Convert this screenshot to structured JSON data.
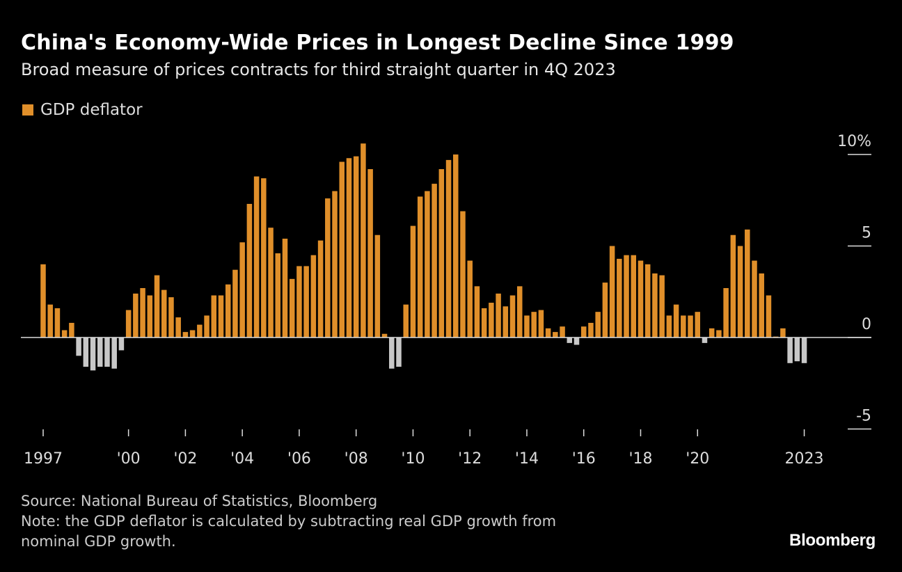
{
  "chart_data": {
    "type": "bar",
    "title": "China's Economy-Wide Prices in Longest Decline Since 1999",
    "subtitle": "Broad measure of prices contracts for third straight quarter in 4Q 2023",
    "series": [
      {
        "name": "GDP deflator",
        "start": "1997 Q1",
        "frequency": "quarterly",
        "values": [
          4.0,
          1.8,
          1.6,
          0.4,
          0.8,
          -1.0,
          -1.6,
          -1.8,
          -1.6,
          -1.6,
          -1.7,
          -0.7,
          1.5,
          2.4,
          2.7,
          2.3,
          3.4,
          2.6,
          2.2,
          1.1,
          0.3,
          0.4,
          0.7,
          1.2,
          2.3,
          2.3,
          2.9,
          3.7,
          5.2,
          7.3,
          8.8,
          8.7,
          6.0,
          4.6,
          5.4,
          3.2,
          3.9,
          3.9,
          4.5,
          5.3,
          7.6,
          8.0,
          9.6,
          9.8,
          9.9,
          10.6,
          9.2,
          5.6,
          0.2,
          -1.7,
          -1.6,
          1.8,
          6.1,
          7.7,
          8.0,
          8.4,
          9.2,
          9.7,
          10.0,
          6.9,
          4.2,
          2.8,
          1.6,
          1.9,
          2.4,
          1.7,
          2.3,
          2.8,
          1.2,
          1.4,
          1.5,
          0.5,
          0.3,
          0.6,
          -0.3,
          -0.4,
          0.6,
          0.8,
          1.4,
          3.0,
          5.0,
          4.3,
          4.5,
          4.5,
          4.2,
          4.0,
          3.5,
          3.4,
          1.2,
          1.8,
          1.2,
          1.2,
          1.4,
          -0.3,
          0.5,
          0.4,
          2.7,
          5.6,
          5.0,
          5.9,
          4.2,
          3.5,
          2.3,
          0.05,
          0.5,
          -1.4,
          -1.3,
          -1.4
        ]
      }
    ],
    "x_tick_labels": [
      "1997",
      "'00",
      "'02",
      "'04",
      "'06",
      "'08",
      "'10",
      "'12",
      "'14",
      "'16",
      "'18",
      "'20",
      "2023"
    ],
    "x_tick_years": [
      1997,
      2000,
      2002,
      2004,
      2006,
      2008,
      2010,
      2012,
      2014,
      2016,
      2018,
      2020,
      2023
    ],
    "y_tick_labels": [
      "10%",
      "5",
      "0",
      "-5"
    ],
    "y_tick_values": [
      10,
      5,
      0,
      -5
    ],
    "ylim": [
      -5,
      10
    ],
    "grid": false,
    "legend_position": "top-left",
    "colors": {
      "positive": "#e08f2a",
      "negative": "#c8c8c8",
      "background": "#000000"
    }
  },
  "footer": {
    "source": "Source: National Bureau of Statistics, Bloomberg",
    "note_line1": "Note: the GDP deflator is calculated by subtracting real GDP growth from",
    "note_line2": "nominal GDP growth.",
    "logo": "Bloomberg"
  }
}
